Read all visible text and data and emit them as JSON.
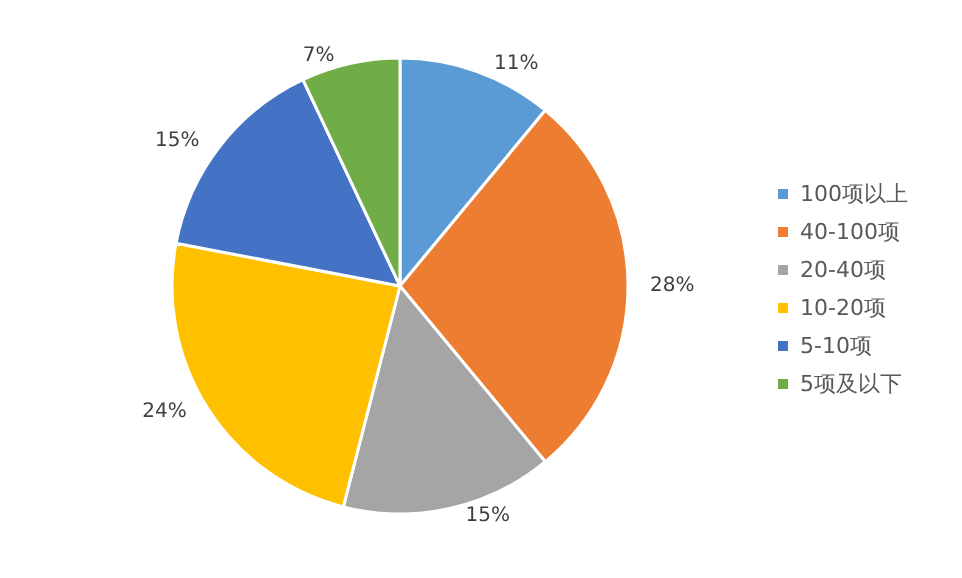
{
  "chart_data": {
    "type": "pie",
    "categories": [
      "100项以上",
      "40-100项",
      "20-40项",
      "10-20项",
      "5-10项",
      "5项及以下"
    ],
    "values": [
      11,
      28,
      15,
      24,
      15,
      7
    ],
    "colors": [
      "#5b9bd5",
      "#ed7d31",
      "#a5a5a5",
      "#ffc000",
      "#4472c4",
      "#70ad47"
    ],
    "legend": "right",
    "value_labels": [
      "11%",
      "28%",
      "15%",
      "24%",
      "15%",
      "7%"
    ]
  }
}
